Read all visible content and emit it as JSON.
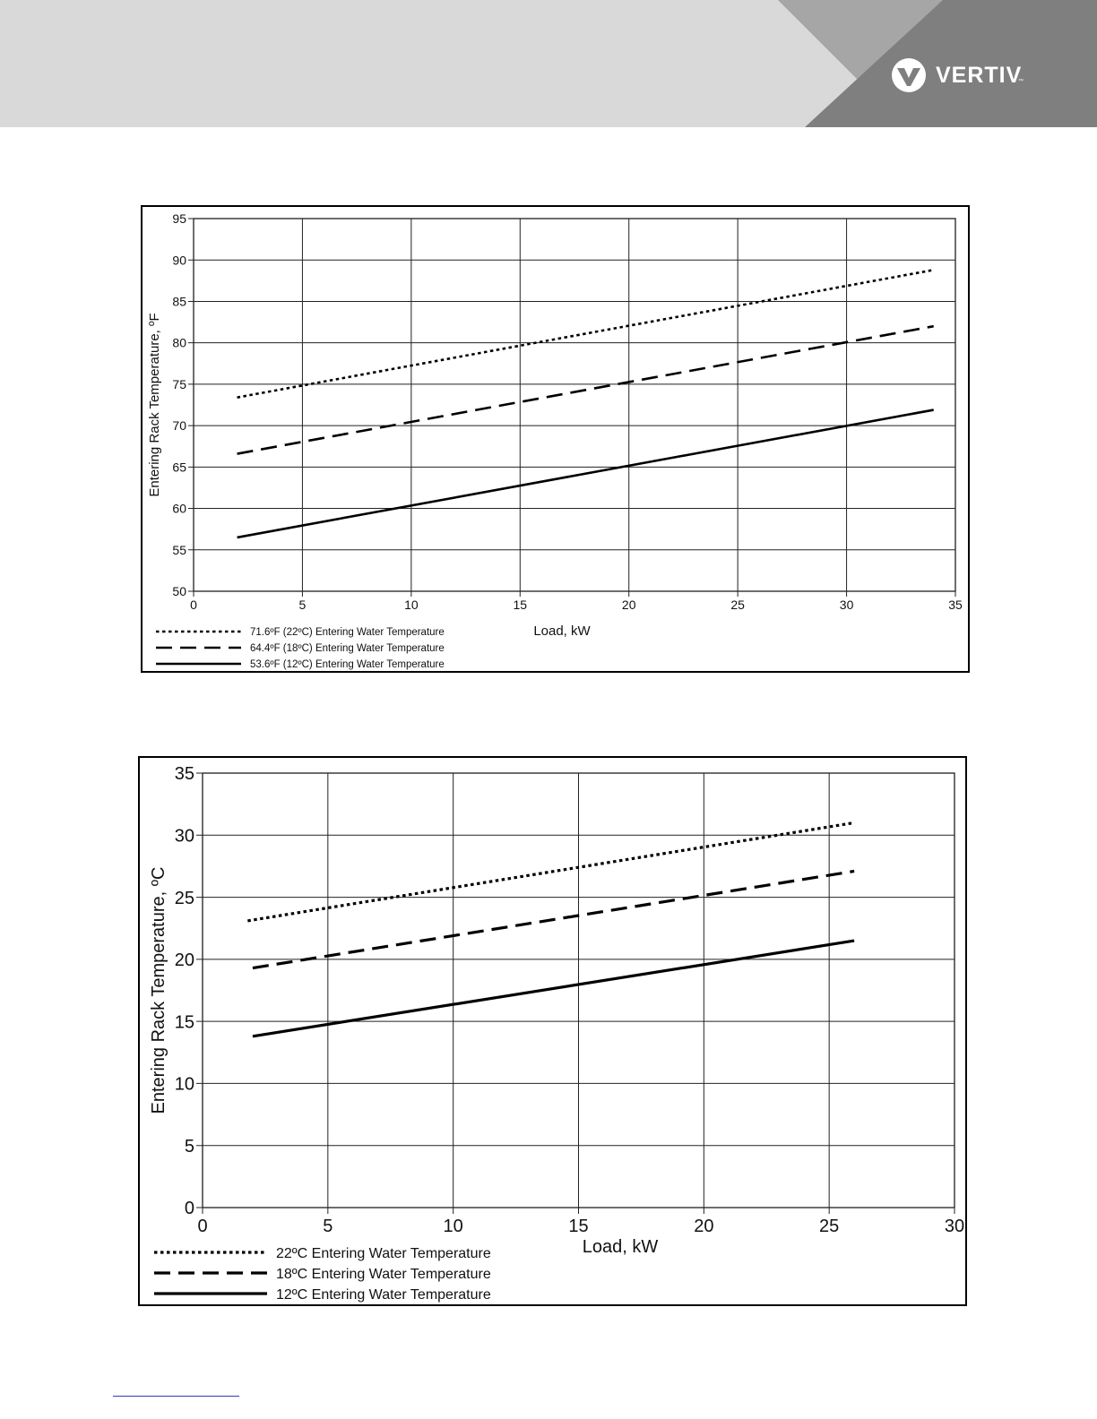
{
  "header": {
    "brand": "VERTIV",
    "brand_mark": "™",
    "logo_icon": "vertiv-v-logo-icon",
    "colors": {
      "band": "#d9d9d9",
      "mid_triangle": "#a6a6a6",
      "dark_panel": "#7f7f7f"
    }
  },
  "chart_data": [
    {
      "type": "line",
      "title": "",
      "xlabel": "Load, kW",
      "ylabel": "Entering Rack Temperature, ºF",
      "xlim": [
        0,
        35
      ],
      "ylim": [
        50,
        95
      ],
      "xticks": [
        0,
        5,
        10,
        15,
        20,
        25,
        30,
        35
      ],
      "yticks": [
        50,
        55,
        60,
        65,
        70,
        75,
        80,
        85,
        90,
        95
      ],
      "xtick_labels": [
        "0",
        "5",
        "10",
        "15",
        "20",
        "25",
        "30",
        "35"
      ],
      "ytick_labels": [
        "50",
        "55",
        "60",
        "65",
        "70",
        "75",
        "80",
        "85",
        "90",
        "95"
      ],
      "grid": true,
      "legend_position": "bottom-left",
      "series": [
        {
          "name": "71.6ºF (22ºC) Entering Water Temperature",
          "style": "dotted",
          "x": [
            2,
            34
          ],
          "y": [
            73.4,
            88.8
          ]
        },
        {
          "name": "64.4ºF (18ºC) Entering Water Temperature",
          "style": "dashed",
          "x": [
            2,
            34
          ],
          "y": [
            66.6,
            82.0
          ]
        },
        {
          "name": "53.6ºF (12ºC) Entering Water Temperature",
          "style": "solid",
          "x": [
            2,
            34
          ],
          "y": [
            56.5,
            71.9
          ]
        }
      ]
    },
    {
      "type": "line",
      "title": "",
      "xlabel": "Load, kW",
      "ylabel": "Entering Rack Temperature, ºC",
      "xlim": [
        0,
        30
      ],
      "ylim": [
        0,
        35
      ],
      "xticks": [
        0,
        5,
        10,
        15,
        20,
        25,
        30
      ],
      "yticks": [
        0,
        5,
        10,
        15,
        20,
        25,
        30,
        35
      ],
      "xtick_labels": [
        "0",
        "5",
        "10",
        "15",
        "20",
        "25",
        "30"
      ],
      "ytick_labels": [
        "0",
        "5",
        "10",
        "15",
        "20",
        "25",
        "30",
        "35"
      ],
      "grid": true,
      "legend_position": "bottom-left",
      "series": [
        {
          "name": "22ºC  Entering Water Temperature",
          "style": "dotted",
          "x": [
            1.8,
            26
          ],
          "y": [
            23.1,
            31.0
          ]
        },
        {
          "name": "18ºC Entering Water Temperature",
          "style": "dashed",
          "x": [
            2,
            26
          ],
          "y": [
            19.3,
            27.1
          ]
        },
        {
          "name": "12ºC Entering Water Temperature",
          "style": "solid",
          "x": [
            2,
            26
          ],
          "y": [
            13.8,
            21.5
          ]
        }
      ]
    }
  ]
}
